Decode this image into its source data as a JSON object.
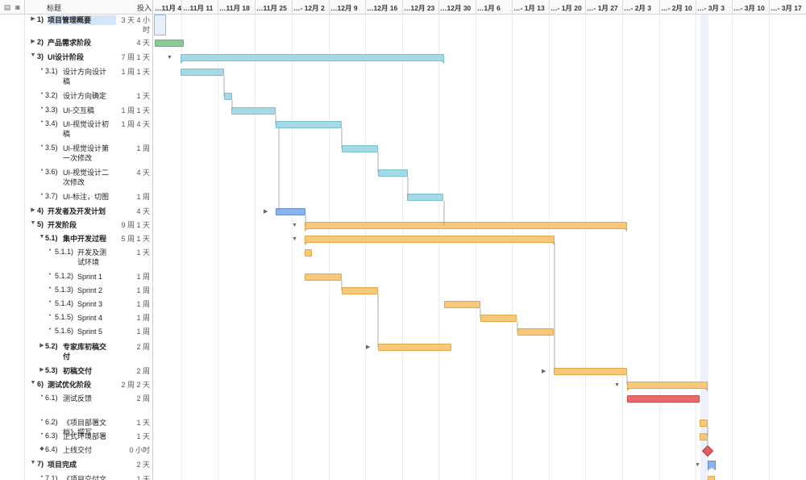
{
  "header": {
    "title_col": "标题",
    "effort_col": "投入",
    "icons": [
      "note-icon",
      "info-icon"
    ]
  },
  "timeline": {
    "weeks": [
      "…11月 4",
      "…11月 11",
      "…11月 18",
      "…11月 25",
      "…- 12月 2",
      "…12月 9",
      "…12月 16",
      "…12月 23",
      "…12月 30",
      "…1月 6",
      "…- 1月 13",
      "…- 1月 20",
      "…- 1月 27",
      "…- 2月 3",
      "…- 2月 10",
      "…- 3月 3",
      "…- 3月 10",
      "…- 3月 17"
    ]
  },
  "rows": [
    {
      "num": "1)",
      "title": "项目管理概要",
      "title2": "",
      "effort": "3 天 4 小",
      "effort2": "时",
      "bold": true,
      "toggle": "▶",
      "level": 0,
      "selected": true
    },
    {
      "num": "2)",
      "title": "产品需求阶段",
      "title2": "",
      "effort": "4 天",
      "effort2": "",
      "bold": true,
      "toggle": "▶",
      "level": 0
    },
    {
      "num": "3)",
      "title": "UI设计阶段",
      "title2": "",
      "effort": "7 周 1 天",
      "effort2": "",
      "bold": true,
      "toggle": "▼",
      "level": 0
    },
    {
      "num": "3.1)",
      "title": "设计方向设计",
      "title2": "稿",
      "effort": "1 周 1 天",
      "effort2": "",
      "bold": false,
      "toggle": "•",
      "level": 1
    },
    {
      "num": "3.2)",
      "title": "设计方向确定",
      "title2": "",
      "effort": "1 天",
      "effort2": "",
      "bold": false,
      "toggle": "•",
      "level": 1
    },
    {
      "num": "3.3)",
      "title": "UI-交互稿",
      "title2": "",
      "effort": "1 周 1 天",
      "effort2": "",
      "bold": false,
      "toggle": "•",
      "level": 1
    },
    {
      "num": "3.4)",
      "title": "UI-视觉设计初",
      "title2": "稿",
      "effort": "1 周 4 天",
      "effort2": "",
      "bold": false,
      "toggle": "•",
      "level": 1
    },
    {
      "num": "3.5)",
      "title": "UI-视觉设计第",
      "title2": "一次修改",
      "effort": "1 周",
      "effort2": "",
      "bold": false,
      "toggle": "•",
      "level": 1
    },
    {
      "num": "3.6)",
      "title": "UI-视觉设计二",
      "title2": "次修改",
      "effort": "4 天",
      "effort2": "",
      "bold": false,
      "toggle": "•",
      "level": 1
    },
    {
      "num": "3.7)",
      "title": "UI-标注，切图",
      "title2": "",
      "effort": "1 周",
      "effort2": "",
      "bold": false,
      "toggle": "•",
      "level": 1
    },
    {
      "num": "4)",
      "title": "开发者及开发计划",
      "title2": "",
      "effort": "4 天",
      "effort2": "",
      "bold": true,
      "toggle": "▶",
      "level": 0
    },
    {
      "num": "5)",
      "title": "开发阶段",
      "title2": "",
      "effort": "9 周 1 天",
      "effort2": "",
      "bold": true,
      "toggle": "▼",
      "level": 0
    },
    {
      "num": "5.1)",
      "title": "集中开发过程",
      "title2": "",
      "effort": "5 周 1 天",
      "effort2": "",
      "bold": true,
      "toggle": "▼",
      "level": 1
    },
    {
      "num": "5.1.1)",
      "title": "开发及测",
      "title2": "试环境",
      "effort": "1 天",
      "effort2": "",
      "bold": false,
      "toggle": "•",
      "level": 2
    },
    {
      "num": "5.1.2)",
      "title": "Sprint 1",
      "title2": "",
      "effort": "1 周",
      "effort2": "",
      "bold": false,
      "toggle": "•",
      "level": 2
    },
    {
      "num": "5.1.3)",
      "title": "Sprint 2",
      "title2": "",
      "effort": "1 周",
      "effort2": "",
      "bold": false,
      "toggle": "•",
      "level": 2
    },
    {
      "num": "5.1.4)",
      "title": "Sprint 3",
      "title2": "",
      "effort": "1 周",
      "effort2": "",
      "bold": false,
      "toggle": "•",
      "level": 2
    },
    {
      "num": "5.1.5)",
      "title": "Sprint 4",
      "title2": "",
      "effort": "1 周",
      "effort2": "",
      "bold": false,
      "toggle": "•",
      "level": 2
    },
    {
      "num": "5.1.6)",
      "title": "Sprint 5",
      "title2": "",
      "effort": "1 周",
      "effort2": "",
      "bold": false,
      "toggle": "•",
      "level": 2
    },
    {
      "num": "5.2)",
      "title": "专家库初稿交",
      "title2": "付",
      "effort": "2 周",
      "effort2": "",
      "bold": true,
      "toggle": "▶",
      "level": 1
    },
    {
      "num": "5.3)",
      "title": "初稿交付",
      "title2": "",
      "effort": "2 周",
      "effort2": "",
      "bold": true,
      "toggle": "▶",
      "level": 1
    },
    {
      "num": "6)",
      "title": "测试优化阶段",
      "title2": "",
      "effort": "2 周 2 天",
      "effort2": "",
      "bold": true,
      "toggle": "▼",
      "level": 0
    },
    {
      "num": "6.1)",
      "title": "测试反馈",
      "title2": "",
      "effort": "2 周",
      "effort2": "",
      "bold": false,
      "toggle": "•",
      "level": 1
    },
    {
      "num": "6.2)",
      "title": "《项目部署文",
      "title2": "档》撰写",
      "effort": "1 天",
      "effort2": "",
      "bold": false,
      "toggle": "•",
      "level": 1
    },
    {
      "num": "6.3)",
      "title": "正式环境部署",
      "title2": "",
      "effort": "1 天",
      "effort2": "",
      "bold": false,
      "toggle": "•",
      "level": 1
    },
    {
      "num": "6.4)",
      "title": "上线交付",
      "title2": "",
      "effort": "0 小时",
      "effort2": "",
      "bold": false,
      "toggle": "◆",
      "level": 1
    },
    {
      "num": "7)",
      "title": "项目完成",
      "title2": "",
      "effort": "2 天",
      "effort2": "",
      "bold": true,
      "toggle": "▼",
      "level": 0
    },
    {
      "num": "7.1)",
      "title": "《项目交付文",
      "title2": "",
      "effort": "1 天",
      "effort2": "",
      "bold": false,
      "toggle": "•",
      "level": 1
    }
  ]
}
